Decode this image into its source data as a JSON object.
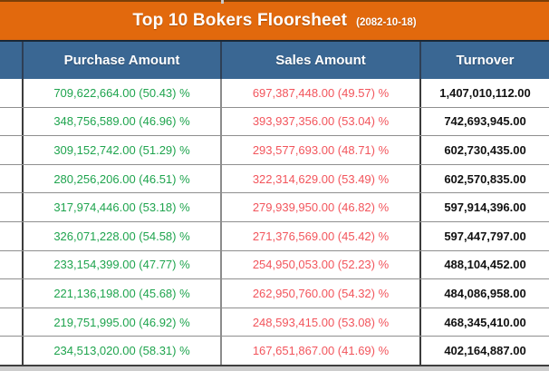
{
  "header": {
    "title": "Top 10 Bokers Floorsheet",
    "date": "(2082-10-18)"
  },
  "columns": {
    "purchase": "Purchase Amount",
    "sales": "Sales Amount",
    "turnover": "Turnover"
  },
  "colors": {
    "orange": "#e2690d",
    "headerBlue": "#3a6793",
    "green": "#1fa44e",
    "red": "#f2555c",
    "black": "#111111"
  },
  "rows": [
    {
      "purchase": "709,622,664.00 (50.43) %",
      "sales": "697,387,448.00 (49.57) %",
      "turnover": "1,407,010,112.00"
    },
    {
      "purchase": "348,756,589.00 (46.96) %",
      "sales": "393,937,356.00 (53.04) %",
      "turnover": "742,693,945.00"
    },
    {
      "purchase": "309,152,742.00 (51.29) %",
      "sales": "293,577,693.00 (48.71) %",
      "turnover": "602,730,435.00"
    },
    {
      "purchase": "280,256,206.00 (46.51) %",
      "sales": "322,314,629.00 (53.49) %",
      "turnover": "602,570,835.00"
    },
    {
      "purchase": "317,974,446.00 (53.18) %",
      "sales": "279,939,950.00 (46.82) %",
      "turnover": "597,914,396.00"
    },
    {
      "purchase": "326,071,228.00 (54.58) %",
      "sales": "271,376,569.00 (45.42) %",
      "turnover": "597,447,797.00"
    },
    {
      "purchase": "233,154,399.00 (47.77) %",
      "sales": "254,950,053.00 (52.23) %",
      "turnover": "488,104,452.00"
    },
    {
      "purchase": "221,136,198.00 (45.68) %",
      "sales": "262,950,760.00 (54.32) %",
      "turnover": "484,086,958.00"
    },
    {
      "purchase": "219,751,995.00 (46.92) %",
      "sales": "248,593,415.00 (53.08) %",
      "turnover": "468,345,410.00"
    },
    {
      "purchase": "234,513,020.00 (58.31) %",
      "sales": "167,651,867.00 (41.69) %",
      "turnover": "402,164,887.00"
    }
  ]
}
